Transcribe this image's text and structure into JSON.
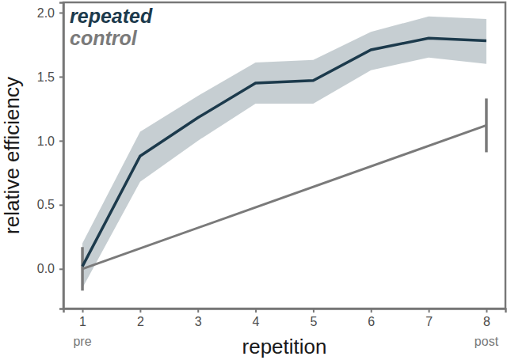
{
  "chart_data": {
    "type": "line",
    "x_label": "repetition",
    "y_label": "relative efficiency",
    "xlim": [
      0.67,
      8.33
    ],
    "xticks": [
      1,
      2,
      3,
      4,
      5,
      6,
      7,
      8
    ],
    "ylim": [
      -0.31,
      2.08
    ],
    "yticks": [
      {
        "value": 0,
        "label": "0.0"
      },
      {
        "value": 0.5,
        "label": "0.5"
      },
      {
        "value": 1,
        "label": "1.0"
      },
      {
        "value": 1.5,
        "label": "1.5"
      },
      {
        "value": 2,
        "label": "2.0"
      }
    ],
    "grid": false,
    "legend": "upper left",
    "annotations": [
      {
        "x": 1,
        "text": "pre"
      },
      {
        "x": 8,
        "text": "post"
      }
    ],
    "series": [
      {
        "name": "repeated",
        "color": "#1c3a4c",
        "type": "line",
        "x": [
          1,
          2,
          3,
          4,
          5,
          6,
          7,
          8
        ],
        "values": [
          0.02,
          0.88,
          1.18,
          1.45,
          1.47,
          1.71,
          1.8,
          1.78
        ],
        "lower": [
          -0.15,
          0.68,
          1.0,
          1.29,
          1.29,
          1.55,
          1.65,
          1.6
        ],
        "upper": [
          0.2,
          1.07,
          1.35,
          1.61,
          1.63,
          1.85,
          1.97,
          1.95
        ]
      },
      {
        "name": "control",
        "color": "#7a7a7a",
        "type": "line",
        "x": [
          1,
          8
        ],
        "values": [
          0,
          1.12
        ],
        "error": [
          0.17,
          0.21
        ]
      }
    ]
  }
}
